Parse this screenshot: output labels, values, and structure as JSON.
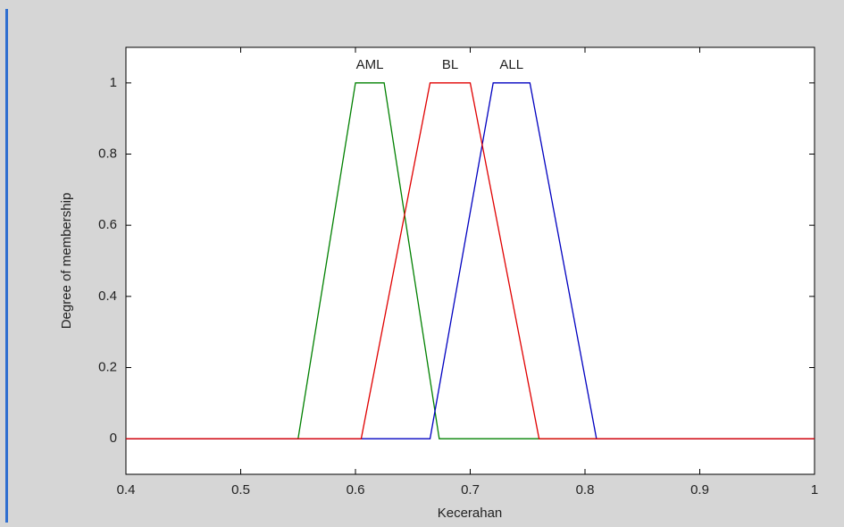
{
  "chart_data": {
    "type": "line",
    "xlabel": "Kecerahan",
    "ylabel": "Degree of membership",
    "xlim": [
      0.4,
      1
    ],
    "ylim": [
      -0.1,
      1.1
    ],
    "xticks": [
      0.4,
      0.5,
      0.6,
      0.7,
      0.8,
      0.9,
      1
    ],
    "yticks": [
      0,
      0.2,
      0.4,
      0.6,
      0.8,
      1
    ],
    "series": [
      {
        "name": "AML",
        "color": "#008000",
        "x": [
          0.4,
          0.55,
          0.6,
          0.625,
          0.673,
          1
        ],
        "values": [
          0,
          0,
          1,
          1,
          0,
          0
        ]
      },
      {
        "name": "ALL",
        "color": "#0000c0",
        "x": [
          0.4,
          0.665,
          0.72,
          0.752,
          0.81,
          1
        ],
        "values": [
          0,
          0,
          1,
          1,
          0,
          0
        ]
      },
      {
        "name": "BL",
        "color": "#e00000",
        "x": [
          0.4,
          0.605,
          0.665,
          0.7,
          0.76,
          1
        ],
        "values": [
          0,
          0,
          1,
          1,
          0,
          0
        ]
      }
    ]
  }
}
